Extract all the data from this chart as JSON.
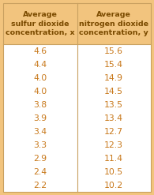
{
  "col1_header": "Average\nsulfur dioxide\nconcentration, x",
  "col2_header": "Average\nnitrogen dioxide\nconcentration, y",
  "col1_values": [
    "4.6",
    "4.4",
    "4.0",
    "4.0",
    "3.8",
    "3.9",
    "3.4",
    "3.3",
    "2.9",
    "2.4",
    "2.2"
  ],
  "col2_values": [
    "15.6",
    "15.4",
    "14.9",
    "14.5",
    "13.5",
    "13.4",
    "12.7",
    "12.3",
    "11.4",
    "10.5",
    "10.2"
  ],
  "header_bg": "#F2C47E",
  "row_bg": "#FFFFFF",
  "data_text_color": "#C8781A",
  "header_text_color": "#7B4B00",
  "divider_color": "#C8A060",
  "font_size_header": 6.8,
  "font_size_data": 7.8,
  "fig_width": 1.95,
  "fig_height": 2.47,
  "dpi": 100
}
